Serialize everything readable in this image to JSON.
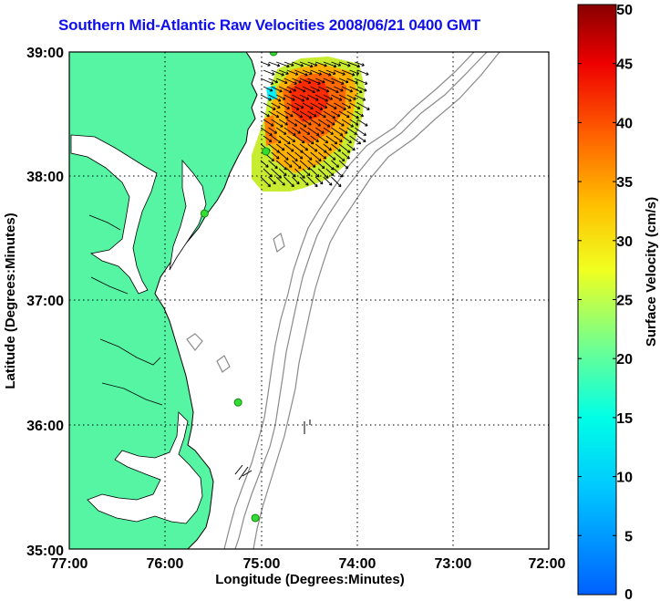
{
  "title": "Southern Mid-Atlantic Raw Velocities 2008/06/21 0400 GMT",
  "map": {
    "xlabel": "Longitude (Degrees:Minutes)",
    "ylabel": "Latitude (Degrees:Minutes)",
    "lon_ticks": [
      "77:00",
      "76:00",
      "75:00",
      "74:00",
      "73:00",
      "72:00"
    ],
    "lat_ticks": [
      "35:00",
      "36:00",
      "37:00",
      "38:00",
      "39:00"
    ],
    "lon_range": [
      -77,
      -72
    ],
    "lat_range": [
      35,
      39
    ],
    "land_color": "#55f5a4",
    "isobath_color": "#8a8a8a",
    "grid": "dotted"
  },
  "colorbar": {
    "label": "Surface Velocity (cm/s)",
    "ticks": [
      "0",
      "5",
      "10",
      "15",
      "20",
      "25",
      "30",
      "35",
      "40",
      "45",
      "50"
    ],
    "range": [
      0,
      50
    ],
    "colormap": "jet"
  },
  "stations": [
    {
      "lon": -74.87,
      "lat": 39.0
    },
    {
      "lon": -74.95,
      "lat": 38.2
    },
    {
      "lon": -75.59,
      "lat": 37.7
    },
    {
      "lon": -75.24,
      "lat": 36.18
    },
    {
      "lon": -75.06,
      "lat": 35.25
    }
  ]
}
